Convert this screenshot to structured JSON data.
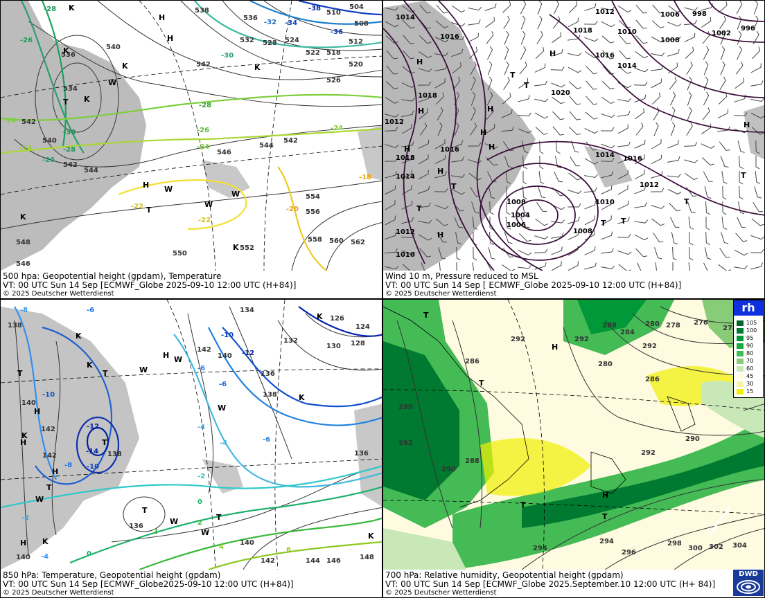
{
  "panels": {
    "p500": {
      "caption1": "500 hpa: Geopotential height (gpdam), Temperature",
      "caption2": "VT: 00 UTC Sun  14 Sep [ECMWF_Globe 2025-09-10 12:00 UTC  (H+84)]",
      "caption3": "© 2025 Deutscher Wetterdienst",
      "height_labels": [
        "536",
        "534",
        "540",
        "542",
        "548",
        "544",
        "546",
        "550",
        "552",
        "554",
        "556",
        "558",
        "560",
        "562",
        "538",
        "532",
        "528",
        "524",
        "522",
        "518",
        "520",
        "512",
        "510",
        "504",
        "508",
        "526"
      ],
      "temp_labels": [
        "-28",
        "-26",
        "-24",
        "-30",
        "-32",
        "-34",
        "-36",
        "-22",
        "-20",
        "-18"
      ],
      "pressure_centers": [
        "H",
        "H",
        "K",
        "K",
        "T",
        "W",
        "K",
        "T"
      ]
    },
    "pmsl": {
      "caption1": "Wind 10 m, Pressure reduced to MSL",
      "caption2": "VT: 00 UTC Sun  14 Sep [ ECMWF_Globe 2025-09-10 12:00 UTC  (H+84)]",
      "caption3": "© 2025 Deutscher Wetterdienst",
      "isobar_labels": [
        "1014",
        "1016",
        "1018",
        "1012",
        "1020",
        "1008",
        "1006",
        "1004",
        "1010",
        "1002",
        "998",
        "996"
      ],
      "pressure_centers": [
        "H",
        "T",
        "T",
        "H",
        "H",
        "T"
      ]
    },
    "p850": {
      "caption1": "850 hPa:  Temperature, Geopotential height (gpdam)",
      "caption2": "VT: 00 UTC Sun  14 Sep [ECMWF_Globe2025-09-10 12:00 UTC  (H+84)]",
      "caption3": "© 2025 Deutscher Wetterdienst",
      "height_labels": [
        "138",
        "140",
        "142",
        "134",
        "136",
        "132",
        "130",
        "128",
        "126",
        "124",
        "144",
        "146",
        "148"
      ],
      "temp_labels": [
        "-8",
        "-6",
        "-10",
        "-12",
        "-14",
        "-2",
        "-4",
        "0",
        "2",
        "4",
        "6"
      ],
      "pressure_centers": [
        "T",
        "T",
        "H",
        "K",
        "T",
        "W"
      ]
    },
    "p700": {
      "caption1": "700 hPa:  Relative humidity, Geopotential height (gpdam)",
      "caption2": "VT: 00 UTC Sun  14 Sep [ECMWF_Globe  2025.September.10 12:00 UTC (H+ 84)]",
      "caption3": "© 2025 Deutscher Wetterdienst",
      "height_labels": [
        "288",
        "290",
        "292",
        "286",
        "284",
        "280",
        "278",
        "276",
        "274",
        "294",
        "296",
        "298",
        "300",
        "302",
        "304"
      ],
      "pressure_centers": [
        "H",
        "T",
        "T",
        "H",
        "T"
      ]
    }
  },
  "legend": {
    "title": "rh",
    "levels": [
      "105",
      "100",
      "95",
      "90",
      "80",
      "70",
      "60",
      "45",
      "30",
      "15"
    ],
    "colors": [
      "#00662a",
      "#007a30",
      "#009838",
      "#18aa40",
      "#44bb55",
      "#88cc77",
      "#c8e8b8",
      "#fffbe0",
      "#f8f3a8",
      "#f0f000"
    ]
  },
  "logo": {
    "text": "DWD"
  }
}
